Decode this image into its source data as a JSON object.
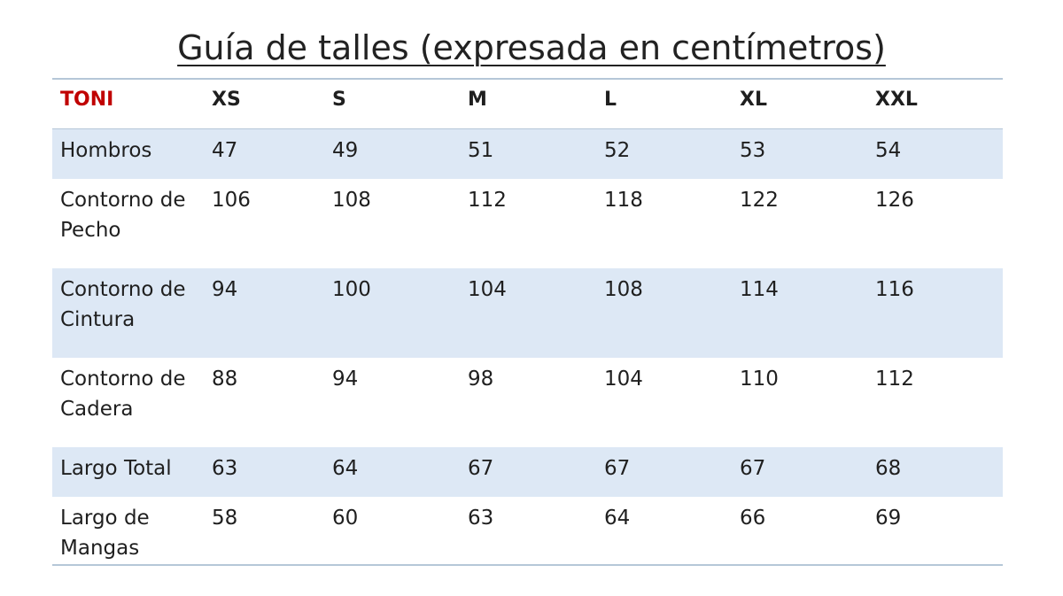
{
  "title": "Guía de talles (expresada en centímetros)",
  "colors": {
    "brand": "#c00000",
    "row_shade": "#dde8f5",
    "rule": "#b5c7d8"
  },
  "table": {
    "brand": "TONI",
    "sizes": [
      "XS",
      "S",
      "M",
      "L",
      "XL",
      "XXL"
    ],
    "rows": [
      {
        "label": "Hombros",
        "values": [
          "47",
          "49",
          "51",
          "52",
          "53",
          "54"
        ]
      },
      {
        "label": "Contorno de\nPecho",
        "values": [
          "106",
          "108",
          "112",
          "118",
          "122",
          "126"
        ]
      },
      {
        "label": "Contorno de\nCintura",
        "values": [
          "94",
          "100",
          "104",
          "108",
          "114",
          "116"
        ]
      },
      {
        "label": "Contorno de\nCadera",
        "values": [
          "88",
          "94",
          "98",
          "104",
          "110",
          "112"
        ]
      },
      {
        "label": "Largo Total",
        "values": [
          "63",
          "64",
          "67",
          "67",
          "67",
          "68"
        ]
      },
      {
        "label": "Largo de\nMangas",
        "values": [
          "58",
          "60",
          "63",
          "64",
          "66",
          "69"
        ]
      }
    ]
  }
}
